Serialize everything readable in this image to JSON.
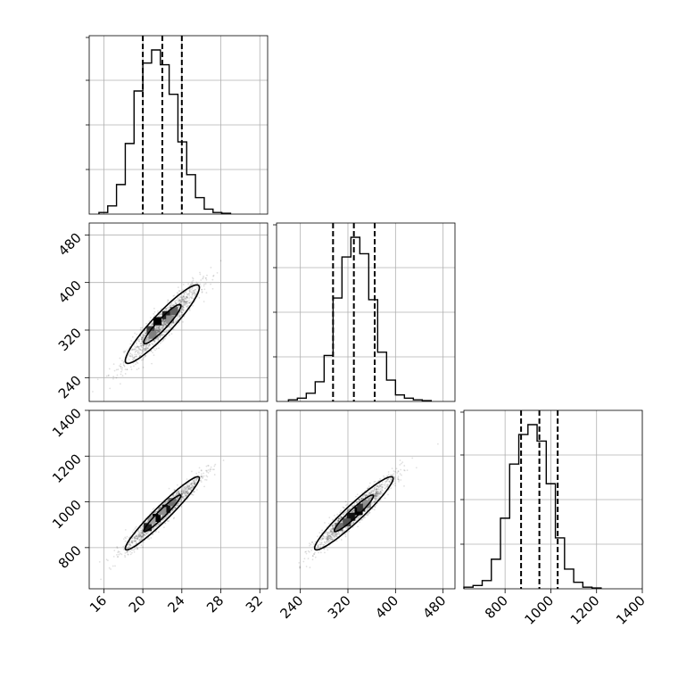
{
  "chart_data": {
    "type": "corner",
    "parameters": [
      {
        "range": [
          14.5,
          32.8
        ],
        "ticks": [
          16,
          20,
          24,
          28,
          32
        ],
        "tick_labels": [
          "16",
          "20",
          "24",
          "28",
          "32"
        ],
        "quantiles": [
          20,
          22,
          24
        ],
        "histogram": {
          "edges": [
            15.5,
            16.4,
            17.3,
            18.2,
            19.1,
            20.0,
            20.9,
            21.8,
            22.7,
            23.6,
            24.5,
            25.4,
            26.3,
            27.2,
            28.1,
            29.0
          ],
          "heights": [
            0.01,
            0.05,
            0.18,
            0.43,
            0.75,
            0.92,
            1.0,
            0.91,
            0.73,
            0.44,
            0.24,
            0.1,
            0.03,
            0.01,
            0.005
          ]
        }
      },
      {
        "range": [
          200,
          500
        ],
        "ticks": [
          240,
          320,
          400,
          480
        ],
        "tick_labels": [
          "240",
          "320",
          "400",
          "480"
        ],
        "quantiles": [
          295,
          330,
          365
        ],
        "histogram": {
          "edges": [
            220,
            235,
            250,
            265,
            280,
            295,
            310,
            325,
            340,
            355,
            370,
            385,
            400,
            415,
            430,
            445,
            460
          ],
          "heights": [
            0.01,
            0.02,
            0.05,
            0.12,
            0.28,
            0.63,
            0.88,
            1.0,
            0.9,
            0.62,
            0.3,
            0.13,
            0.04,
            0.02,
            0.01,
            0.005
          ]
        }
      },
      {
        "range": [
          620,
          1400
        ],
        "ticks": [
          800,
          1000,
          1200,
          1400
        ],
        "tick_labels": [
          "800",
          "1000",
          "1200",
          "1400"
        ],
        "quantiles": [
          870,
          950,
          1030
        ],
        "histogram": {
          "edges": [
            620,
            660,
            700,
            740,
            780,
            820,
            860,
            900,
            940,
            980,
            1020,
            1060,
            1100,
            1140,
            1180,
            1220
          ],
          "heights": [
            0.01,
            0.02,
            0.05,
            0.18,
            0.43,
            0.76,
            0.94,
            1.0,
            0.9,
            0.64,
            0.31,
            0.12,
            0.04,
            0.01,
            0.005
          ]
        }
      }
    ],
    "pairs": [
      {
        "x_param": 0,
        "y_param": 1,
        "mean": [
          22,
          330
        ],
        "sd": [
          1.9,
          33
        ],
        "rho": 0.93,
        "contour_levels_sigma": [
          1,
          2
        ],
        "dense_bins": [
          {
            "x": 21.5,
            "y": 335,
            "shade": "#000000"
          },
          {
            "x": 22.4,
            "y": 345,
            "shade": "#222222"
          },
          {
            "x": 20.8,
            "y": 320,
            "shade": "#404040"
          },
          {
            "x": 23.2,
            "y": 352,
            "shade": "#606060"
          },
          {
            "x": 21.0,
            "y": 312,
            "shade": "#808080"
          },
          {
            "x": 22.8,
            "y": 338,
            "shade": "#909090"
          }
        ]
      },
      {
        "x_param": 0,
        "y_param": 2,
        "mean": [
          22,
          950
        ],
        "sd": [
          1.9,
          80
        ],
        "rho": 0.96,
        "contour_levels_sigma": [
          1,
          2
        ],
        "dense_bins": [
          {
            "x": 21.4,
            "y": 930,
            "shade": "#000000"
          },
          {
            "x": 22.4,
            "y": 970,
            "shade": "#111111"
          },
          {
            "x": 20.5,
            "y": 890,
            "shade": "#202020"
          },
          {
            "x": 23.0,
            "y": 1000,
            "shade": "#707070"
          },
          {
            "x": 22.0,
            "y": 960,
            "shade": "#909090"
          },
          {
            "x": 20.9,
            "y": 920,
            "shade": "#a0a0a0"
          }
        ]
      },
      {
        "x_param": 1,
        "y_param": 2,
        "mean": [
          330,
          950
        ],
        "sd": [
          33,
          80
        ],
        "rho": 0.95,
        "contour_levels_sigma": [
          1,
          2
        ],
        "dense_bins": [
          {
            "x": 338,
            "y": 960,
            "shade": "#000000"
          },
          {
            "x": 325,
            "y": 935,
            "shade": "#111111"
          },
          {
            "x": 342,
            "y": 975,
            "shade": "#333333"
          },
          {
            "x": 318,
            "y": 910,
            "shade": "#505050"
          },
          {
            "x": 305,
            "y": 890,
            "shade": "#707070"
          },
          {
            "x": 352,
            "y": 990,
            "shade": "#909090"
          }
        ]
      }
    ],
    "samples_per_pair": 1400,
    "grid": true,
    "legend": "none"
  }
}
